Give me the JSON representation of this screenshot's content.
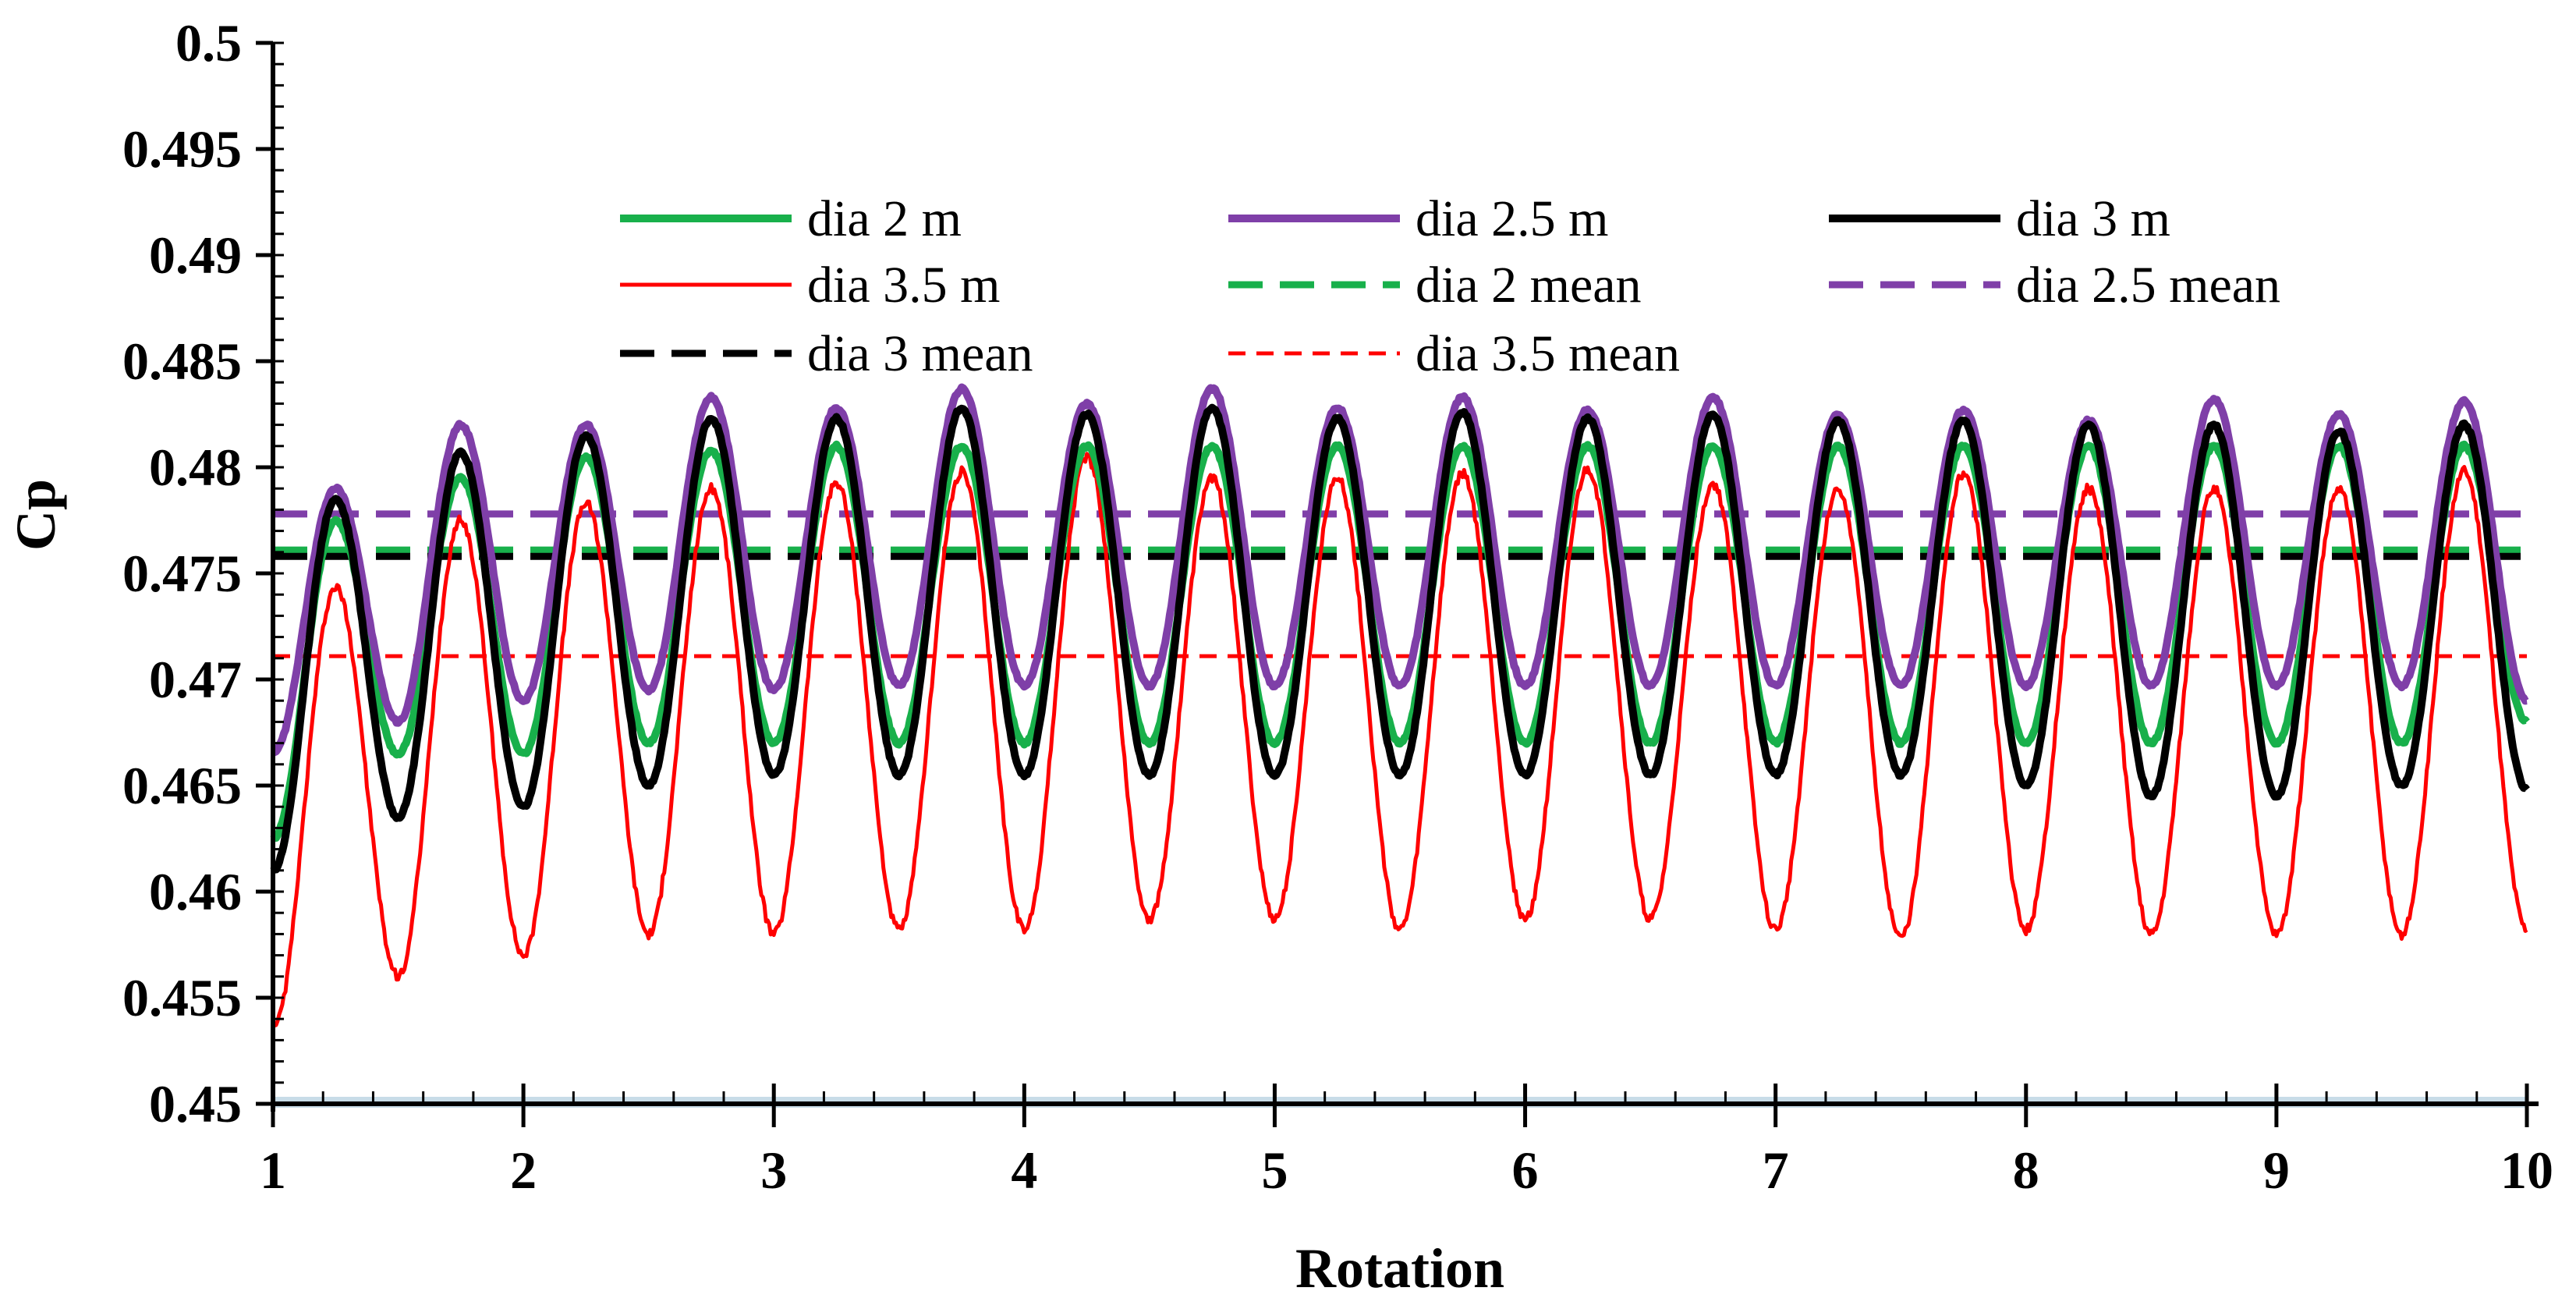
{
  "chart_data": {
    "type": "line",
    "title": "",
    "xlabel": "Rotation",
    "ylabel": "Cp",
    "xlim": [
      1,
      10
    ],
    "ylim": [
      0.45,
      0.5
    ],
    "x_ticks": [
      1,
      2,
      3,
      4,
      5,
      6,
      7,
      8,
      9,
      10
    ],
    "y_ticks": [
      0.45,
      0.455,
      0.46,
      0.465,
      0.47,
      0.475,
      0.48,
      0.485,
      0.49,
      0.495,
      0.5
    ],
    "y_tick_labels": [
      "0.45",
      "0.455",
      "0.46",
      "0.465",
      "0.47",
      "0.475",
      "0.48",
      "0.485",
      "0.49",
      "0.495",
      "0.5"
    ],
    "x_tick_labels": [
      "1",
      "2",
      "3",
      "4",
      "5",
      "6",
      "7",
      "8",
      "9",
      "10"
    ],
    "grid": false,
    "legend_position": "top-center",
    "oscillation_period": 0.5,
    "series": [
      {
        "name": "dia 2 m",
        "color": "#18b04b",
        "style": "solid",
        "width": 10,
        "start": 0.4625,
        "peaks": [
          0.4775,
          0.4795,
          0.4805,
          0.4808,
          0.481,
          0.481,
          0.481,
          0.481,
          0.481,
          0.481,
          0.481,
          0.481,
          0.481,
          0.481,
          0.481,
          0.481,
          0.481,
          0.481
        ],
        "troughs": [
          0.4665,
          0.4665,
          0.467,
          0.467,
          0.467,
          0.467,
          0.467,
          0.467,
          0.467,
          0.467,
          0.467,
          0.467,
          0.467,
          0.467,
          0.467,
          0.467,
          0.467,
          0.468
        ],
        "end": 0.468
      },
      {
        "name": "dia 2.5 m",
        "color": "#7f3fa8",
        "style": "solid",
        "width": 10,
        "start": 0.4665,
        "peaks": [
          0.479,
          0.482,
          0.482,
          0.4833,
          0.4828,
          0.4837,
          0.483,
          0.4837,
          0.4828,
          0.4833,
          0.4827,
          0.4833,
          0.4825,
          0.4827,
          0.4822,
          0.4832,
          0.4825,
          0.4831
        ],
        "troughs": [
          0.468,
          0.469,
          0.4695,
          0.4695,
          0.4697,
          0.4697,
          0.4697,
          0.4697,
          0.4697,
          0.4697,
          0.4697,
          0.4697,
          0.4697,
          0.4697,
          0.4697,
          0.4697,
          0.4697,
          0.469
        ],
        "end": 0.469
      },
      {
        "name": "dia 3 m",
        "color": "#000000",
        "style": "solid",
        "width": 10,
        "start": 0.461,
        "peaks": [
          0.4785,
          0.4807,
          0.4815,
          0.4823,
          0.4823,
          0.4828,
          0.4825,
          0.4828,
          0.4823,
          0.4826,
          0.4823,
          0.4825,
          0.4822,
          0.4822,
          0.482,
          0.482,
          0.4817,
          0.482
        ],
        "troughs": [
          0.4635,
          0.464,
          0.465,
          0.4655,
          0.4655,
          0.4655,
          0.4655,
          0.4655,
          0.4655,
          0.4655,
          0.4655,
          0.4655,
          0.4655,
          0.465,
          0.4645,
          0.4645,
          0.465,
          0.465
        ],
        "end": 0.4648
      },
      {
        "name": "dia 3.5 m",
        "color": "#ff0000",
        "style": "solid",
        "width": 5,
        "start": 0.4535,
        "peaks": [
          0.4743,
          0.4775,
          0.4783,
          0.479,
          0.4793,
          0.4798,
          0.4805,
          0.4795,
          0.4795,
          0.4797,
          0.4799,
          0.4792,
          0.479,
          0.4797,
          0.479,
          0.479,
          0.479,
          0.4798
        ],
        "troughs": [
          0.456,
          0.457,
          0.458,
          0.458,
          0.4582,
          0.4582,
          0.4587,
          0.4587,
          0.4582,
          0.4587,
          0.4587,
          0.4582,
          0.4578,
          0.4582,
          0.458,
          0.458,
          0.458,
          0.458
        ],
        "end": 0.4582
      },
      {
        "name": "dia 2 mean",
        "color": "#18b04b",
        "style": "dashed",
        "width": 9,
        "mean": 0.4761
      },
      {
        "name": "dia 2.5 mean",
        "color": "#7f3fa8",
        "style": "dashed",
        "width": 9,
        "mean": 0.4778
      },
      {
        "name": "dia 3 mean",
        "color": "#000000",
        "style": "dashed",
        "width": 9,
        "mean": 0.4758
      },
      {
        "name": "dia 3.5 mean",
        "color": "#ff0000",
        "style": "dashed",
        "width": 5,
        "mean": 0.4711
      }
    ]
  }
}
